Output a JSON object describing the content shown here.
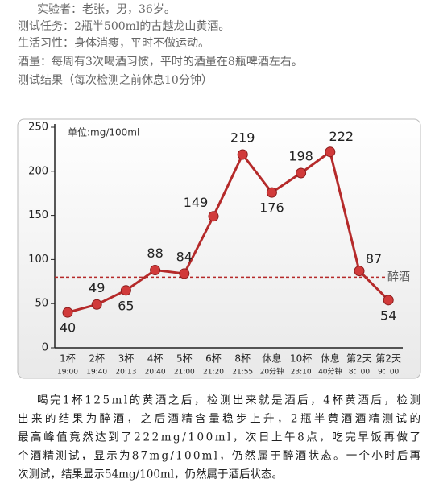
{
  "header": {
    "lines": [
      "实验者：老张，男，36岁。",
      "测试任务：2瓶半500ml的古越龙山黄酒。",
      "生活习性：身体消瘦，平时不做运动。",
      "酒量：每周有3次喝酒习惯，平时的酒量在8瓶啤酒左右。",
      "测试结果（每次检测之前休息10分钟）"
    ]
  },
  "chart_data": {
    "type": "line",
    "unit": "单位:mg/100ml",
    "categories": [
      "1杯",
      "2杯",
      "3杯",
      "4杯",
      "5杯",
      "6杯",
      "8杯",
      "休息",
      "10杯",
      "休息",
      "第2天",
      "第2天"
    ],
    "times": [
      "19:00",
      "19:40",
      "20:13",
      "20:40",
      "21:00",
      "21:20",
      "21:55",
      "20分钟",
      "23:10",
      "40分钟",
      "8：00",
      "9：00"
    ],
    "values": [
      40,
      49,
      65,
      88,
      84,
      149,
      219,
      176,
      198,
      222,
      87,
      54
    ],
    "color": "#b52a2a",
    "threshold": {
      "value": 80,
      "label": "醉酒"
    },
    "ylim": [
      0,
      250
    ],
    "yticks": [
      0,
      50,
      100,
      150,
      200,
      250
    ]
  },
  "paragraph": {
    "lines": [
      "喝完1杯125ml的黄酒之后，检测出来就是酒后，4杯黄酒后，检测",
      "出来的结果为醉酒，之后酒精含量稳步上升，2瓶半黄酒酒精测试的",
      "最高峰值竟然达到了222mg/100ml，次日上午8点，吃完早饭再做了",
      "个酒精测试，显示为87mg/100ml，仍然属于醉酒状态。一个小时后再",
      "次测试，结果显示54mg/100ml，仍然属于酒后状态。"
    ]
  }
}
